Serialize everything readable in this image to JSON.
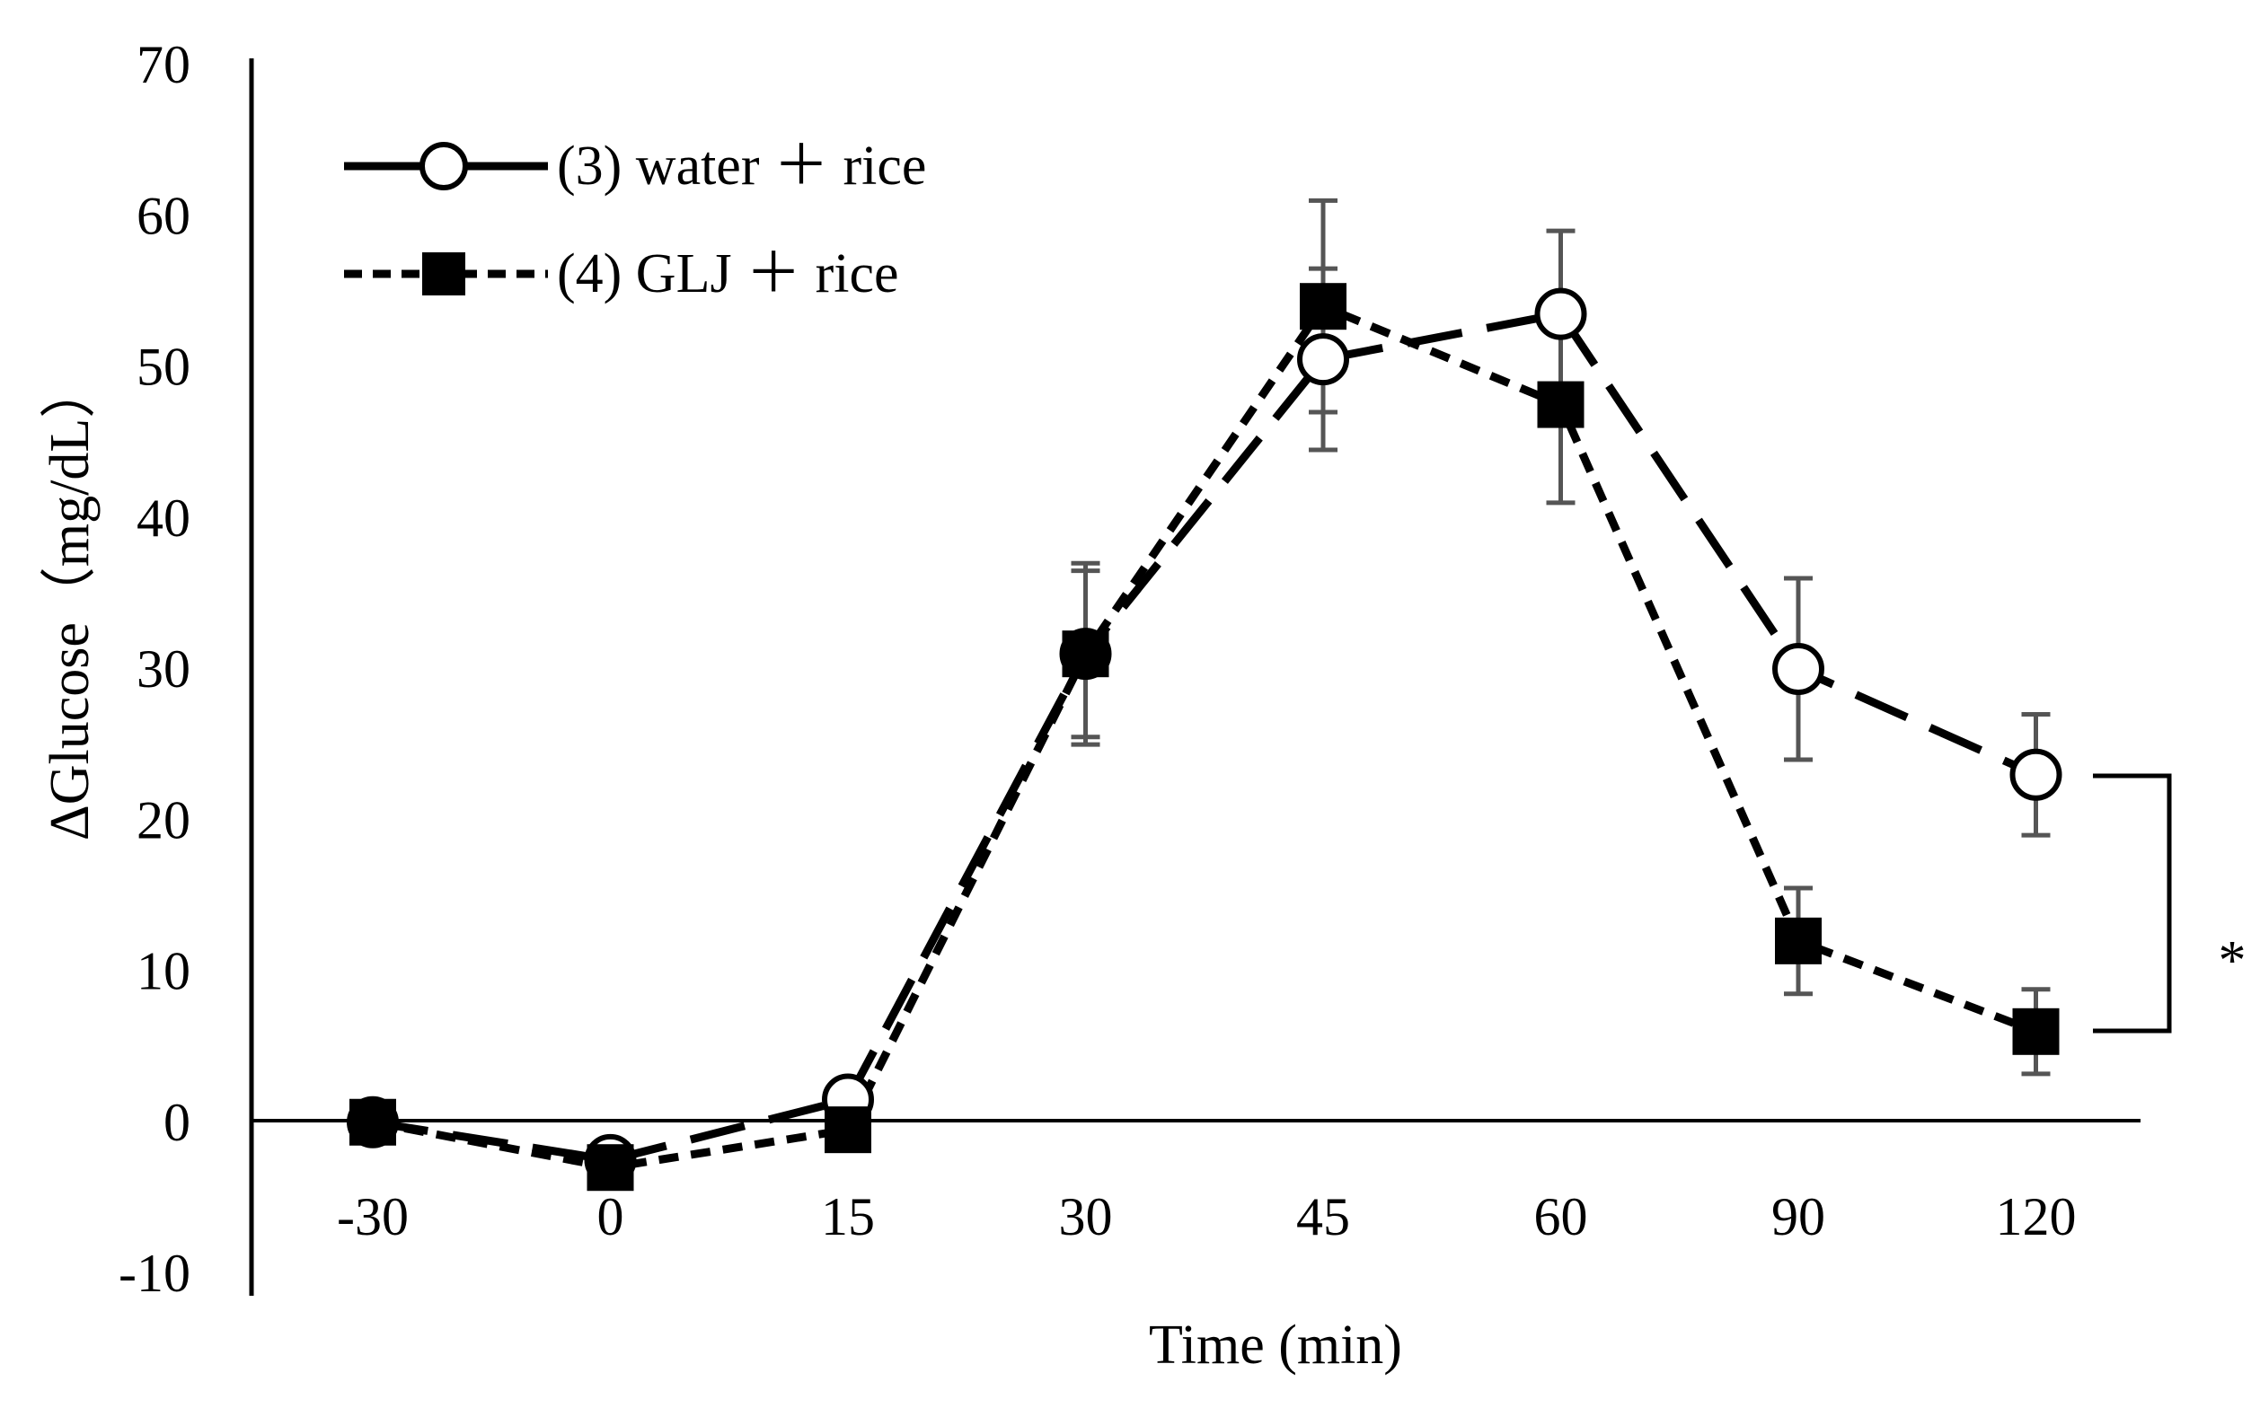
{
  "chart_data": {
    "type": "line",
    "title": "",
    "xlabel": "Time (min)",
    "ylabel": "ΔGlucose（mg/dL）",
    "categories": [
      "-30",
      "0",
      "15",
      "30",
      "45",
      "60",
      "90",
      "120"
    ],
    "y_ticks": [
      "70",
      "60",
      "50",
      "40",
      "30",
      "20",
      "10",
      "0",
      "-10"
    ],
    "ylim": [
      -10,
      70
    ],
    "grid": false,
    "legend_position": "top-left",
    "series": [
      {
        "name": "(3) water ＋ rice",
        "marker": "open-circle",
        "line_style": "long-dash",
        "values": [
          0,
          -2.5,
          1.5,
          31,
          50.5,
          53.5,
          30,
          23
        ],
        "errors": [
          0,
          0,
          0,
          6,
          6,
          5.5,
          6,
          4
        ]
      },
      {
        "name": "(4) GLJ ＋ rice",
        "marker": "filled-square",
        "line_style": "short-dash",
        "values": [
          0,
          -3,
          -0.5,
          31,
          54,
          47.5,
          12,
          6
        ],
        "errors": [
          0,
          0,
          0,
          5.5,
          7,
          6.5,
          3.5,
          2.8
        ]
      }
    ],
    "annotations": [
      {
        "text": "*",
        "between_series_at": "120"
      }
    ]
  }
}
